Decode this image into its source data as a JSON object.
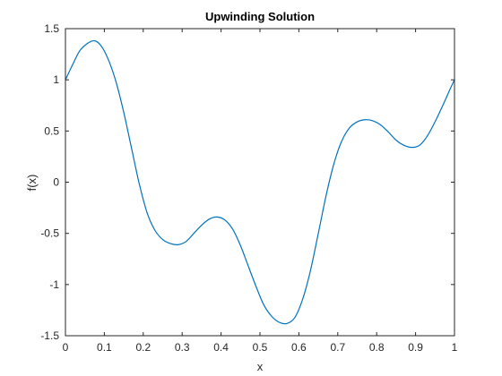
{
  "chart_data": {
    "type": "line",
    "title": "Upwinding Solution",
    "xlabel": "x",
    "ylabel": "f(x)",
    "xlim": [
      0,
      1
    ],
    "ylim": [
      -1.5,
      1.5
    ],
    "xticks": [
      0,
      0.1,
      0.2,
      0.3,
      0.4,
      0.5,
      0.6,
      0.7,
      0.8,
      0.9,
      1
    ],
    "xtick_labels": [
      "0",
      "0.1",
      "0.2",
      "0.3",
      "0.4",
      "0.5",
      "0.6",
      "0.7",
      "0.8",
      "0.9",
      "1"
    ],
    "yticks": [
      -1.5,
      -1,
      -0.5,
      0,
      0.5,
      1,
      1.5
    ],
    "ytick_labels": [
      "-1.5",
      "-1",
      "-0.5",
      "0",
      "0.5",
      "1",
      "1.5"
    ],
    "grid": false,
    "series": [
      {
        "color": "#0072BD",
        "points": [
          [
            0.0,
            1.0
          ],
          [
            0.02,
            1.16
          ],
          [
            0.04,
            1.3
          ],
          [
            0.07,
            1.38
          ],
          [
            0.09,
            1.34
          ],
          [
            0.11,
            1.2
          ],
          [
            0.13,
            0.98
          ],
          [
            0.15,
            0.68
          ],
          [
            0.17,
            0.33
          ],
          [
            0.19,
            -0.02
          ],
          [
            0.21,
            -0.3
          ],
          [
            0.23,
            -0.47
          ],
          [
            0.25,
            -0.56
          ],
          [
            0.27,
            -0.6
          ],
          [
            0.29,
            -0.61
          ],
          [
            0.31,
            -0.58
          ],
          [
            0.33,
            -0.5
          ],
          [
            0.35,
            -0.42
          ],
          [
            0.37,
            -0.36
          ],
          [
            0.39,
            -0.34
          ],
          [
            0.41,
            -0.37
          ],
          [
            0.43,
            -0.46
          ],
          [
            0.45,
            -0.62
          ],
          [
            0.47,
            -0.82
          ],
          [
            0.49,
            -1.02
          ],
          [
            0.51,
            -1.2
          ],
          [
            0.53,
            -1.31
          ],
          [
            0.55,
            -1.37
          ],
          [
            0.57,
            -1.38
          ],
          [
            0.59,
            -1.32
          ],
          [
            0.61,
            -1.14
          ],
          [
            0.63,
            -0.86
          ],
          [
            0.65,
            -0.5
          ],
          [
            0.67,
            -0.13
          ],
          [
            0.69,
            0.18
          ],
          [
            0.71,
            0.4
          ],
          [
            0.73,
            0.53
          ],
          [
            0.75,
            0.59
          ],
          [
            0.77,
            0.61
          ],
          [
            0.79,
            0.6
          ],
          [
            0.81,
            0.56
          ],
          [
            0.83,
            0.49
          ],
          [
            0.85,
            0.41
          ],
          [
            0.87,
            0.36
          ],
          [
            0.89,
            0.34
          ],
          [
            0.91,
            0.36
          ],
          [
            0.93,
            0.45
          ],
          [
            0.95,
            0.59
          ],
          [
            0.97,
            0.75
          ],
          [
            0.99,
            0.92
          ],
          [
            1.0,
            1.0
          ]
        ]
      }
    ]
  }
}
